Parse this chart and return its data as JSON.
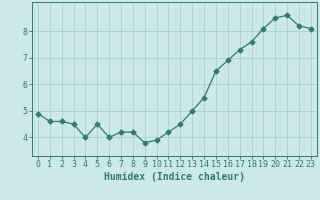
{
  "x": [
    0,
    1,
    2,
    3,
    4,
    5,
    6,
    7,
    8,
    9,
    10,
    11,
    12,
    13,
    14,
    15,
    16,
    17,
    18,
    19,
    20,
    21,
    22,
    23
  ],
  "y": [
    4.9,
    4.6,
    4.6,
    4.5,
    4.0,
    4.5,
    4.0,
    4.2,
    4.2,
    3.8,
    3.9,
    4.2,
    4.5,
    5.0,
    5.5,
    6.5,
    6.9,
    7.3,
    7.6,
    8.1,
    8.5,
    8.6,
    8.2,
    8.1
  ],
  "line_color": "#2e7d6e",
  "marker": "D",
  "marker_size": 2.5,
  "bg_color": "#cce8e8",
  "grid_color": "#aacece",
  "xlabel": "Humidex (Indice chaleur)",
  "xlabel_fontsize": 7,
  "tick_label_fontsize": 6,
  "yticks": [
    4,
    5,
    6,
    7,
    8
  ],
  "ylim": [
    3.3,
    9.1
  ],
  "xlim": [
    -0.5,
    23.5
  ],
  "xticks": [
    0,
    1,
    2,
    3,
    4,
    5,
    6,
    7,
    8,
    9,
    10,
    11,
    12,
    13,
    14,
    15,
    16,
    17,
    18,
    19,
    20,
    21,
    22,
    23
  ]
}
